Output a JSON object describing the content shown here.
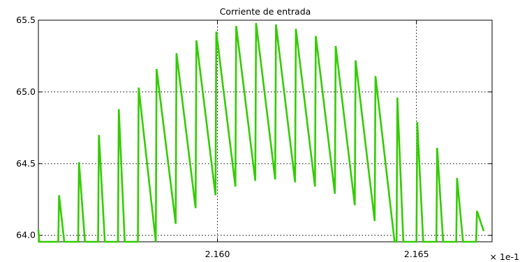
{
  "chart_data": {
    "type": "line",
    "title": "Corriente de entrada",
    "xlabel": "",
    "ylabel": "",
    "x_multiplier_label": "× 1e-1",
    "xlim": [
      2.1555,
      2.1669
    ],
    "ylim": [
      63.955,
      65.5
    ],
    "x_ticks": [
      2.16,
      2.165
    ],
    "x_tick_labels": [
      "2.160",
      "2.165"
    ],
    "y_ticks": [
      64.0,
      64.5,
      65.0,
      65.5
    ],
    "y_tick_labels": [
      "64.0",
      "64.5",
      "65.0",
      "65.5"
    ],
    "grid": true,
    "line_color": "#33cc00",
    "series": [
      {
        "points": [
          [
            2.1555,
            64.04
          ],
          [
            2.15552,
            63.955
          ],
          [
            2.156,
            63.955
          ],
          [
            2.15602,
            64.28
          ],
          [
            2.15615,
            63.955
          ],
          [
            2.1565,
            63.955
          ],
          [
            2.15652,
            64.51
          ],
          [
            2.15667,
            63.955
          ],
          [
            2.157,
            63.955
          ],
          [
            2.15702,
            64.7
          ],
          [
            2.15717,
            63.955
          ],
          [
            2.1575,
            63.955
          ],
          [
            2.15752,
            64.88
          ],
          [
            2.15767,
            63.955
          ],
          [
            2.158,
            63.955
          ],
          [
            2.15802,
            65.03
          ],
          [
            2.15845,
            63.955
          ],
          [
            2.15847,
            65.16
          ],
          [
            2.15895,
            64.08
          ],
          [
            2.15897,
            65.27
          ],
          [
            2.15945,
            64.19
          ],
          [
            2.15947,
            65.36
          ],
          [
            2.15995,
            64.28
          ],
          [
            2.15997,
            65.42
          ],
          [
            2.16045,
            64.34
          ],
          [
            2.16047,
            65.46
          ],
          [
            2.16095,
            64.38
          ],
          [
            2.16097,
            65.48
          ],
          [
            2.16145,
            64.39
          ],
          [
            2.16147,
            65.47
          ],
          [
            2.16195,
            64.37
          ],
          [
            2.16197,
            65.44
          ],
          [
            2.16245,
            64.34
          ],
          [
            2.16247,
            65.39
          ],
          [
            2.16295,
            64.29
          ],
          [
            2.16297,
            65.32
          ],
          [
            2.16345,
            64.21
          ],
          [
            2.16347,
            65.22
          ],
          [
            2.16395,
            64.1
          ],
          [
            2.16397,
            65.11
          ],
          [
            2.16445,
            63.955
          ],
          [
            2.1645,
            63.955
          ],
          [
            2.16452,
            64.96
          ],
          [
            2.16467,
            63.955
          ],
          [
            2.165,
            63.955
          ],
          [
            2.16502,
            64.79
          ],
          [
            2.16517,
            63.955
          ],
          [
            2.1655,
            63.955
          ],
          [
            2.16552,
            64.61
          ],
          [
            2.16567,
            63.955
          ],
          [
            2.166,
            63.955
          ],
          [
            2.16602,
            64.4
          ],
          [
            2.16617,
            63.955
          ],
          [
            2.1665,
            63.955
          ],
          [
            2.16652,
            64.17
          ],
          [
            2.16669,
            64.03
          ]
        ]
      }
    ]
  }
}
